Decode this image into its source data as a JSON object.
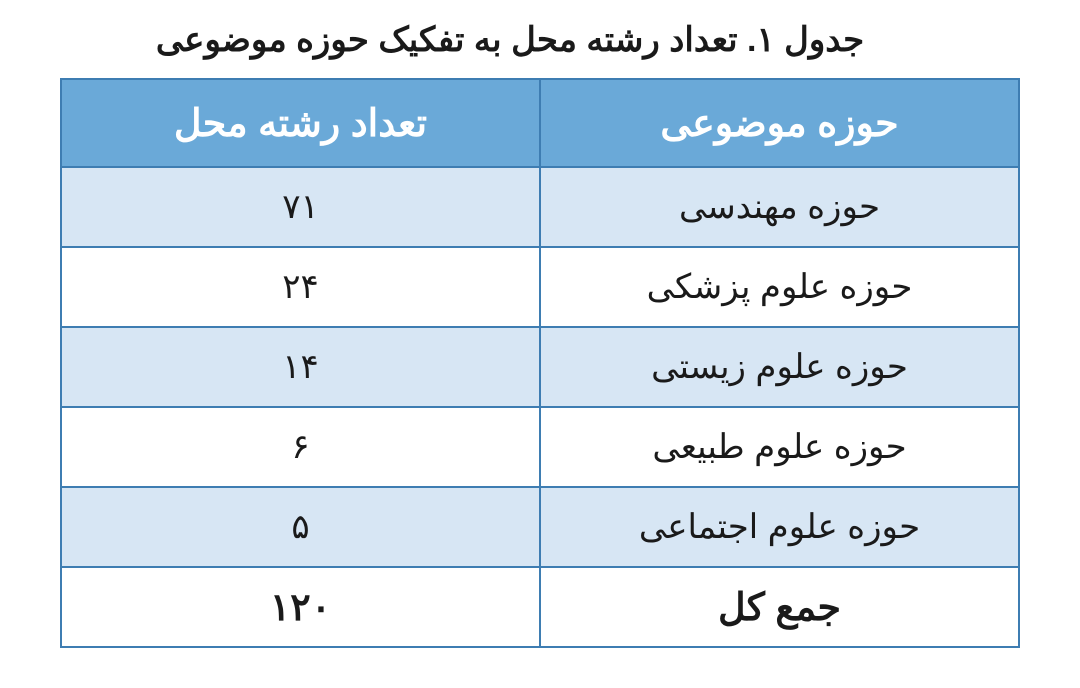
{
  "title": "جدول ۱. تعداد رشته محل به تفکیک حوزه موضوعی",
  "table": {
    "type": "table",
    "columns": [
      {
        "key": "subject",
        "label": "حوزه موضوعی",
        "align": "center"
      },
      {
        "key": "count",
        "label": "تعداد رشته محل",
        "align": "center"
      }
    ],
    "rows": [
      {
        "subject": "حوزه مهندسی",
        "count": "۷۱",
        "alt": true
      },
      {
        "subject": "حوزه علوم پزشکی",
        "count": "۲۴",
        "alt": false
      },
      {
        "subject": "حوزه علوم زیستی",
        "count": "۱۴",
        "alt": true
      },
      {
        "subject": "حوزه علوم طبیعی",
        "count": "۶",
        "alt": false
      },
      {
        "subject": "حوزه علوم اجتماعی",
        "count": "۵",
        "alt": true
      }
    ],
    "total": {
      "subject": "جمع کل",
      "count": "۱۲۰"
    },
    "colors": {
      "header_bg": "#6aa9d8",
      "header_text": "#ffffff",
      "row_alt_bg": "#d7e6f4",
      "row_bg": "#ffffff",
      "border": "#3e7db2",
      "text": "#1a1a1a"
    },
    "font_sizes": {
      "title": 34,
      "header": 38,
      "cell": 34,
      "total": 38
    }
  }
}
